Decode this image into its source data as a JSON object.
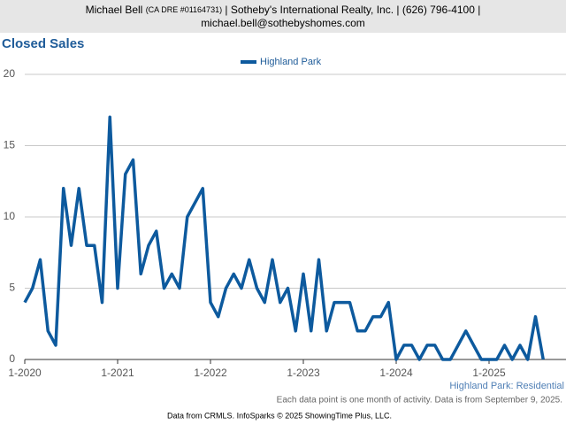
{
  "header": {
    "name": "Michael Bell",
    "license": "(CA DRE #01164731)",
    "company": "| Sotheby's International Realty, Inc. | (626) 796-4100 |",
    "email": "michael.bell@sothebyshomes.com"
  },
  "chart_data": {
    "type": "line",
    "title": "Closed Sales",
    "categories": [
      "1-2020",
      null,
      null,
      null,
      null,
      null,
      null,
      null,
      null,
      null,
      null,
      null,
      "1-2021",
      null,
      null,
      null,
      null,
      null,
      null,
      null,
      null,
      null,
      null,
      null,
      "1-2022",
      null,
      null,
      null,
      null,
      null,
      null,
      null,
      null,
      null,
      null,
      null,
      "1-2023",
      null,
      null,
      null,
      null,
      null,
      null,
      null,
      null,
      null,
      null,
      null,
      "1-2024",
      null,
      null,
      null,
      null,
      null,
      null,
      null,
      null,
      null,
      null,
      null,
      "1-2025",
      null,
      null,
      null,
      null,
      null,
      null,
      null
    ],
    "series": [
      {
        "name": "Highland Park",
        "color": "#0d5a9e",
        "values": [
          4,
          5,
          7,
          2,
          1,
          12,
          8,
          12,
          8,
          8,
          4,
          17,
          5,
          13,
          14,
          6,
          8,
          9,
          5,
          6,
          5,
          10,
          11,
          12,
          4,
          3,
          5,
          6,
          5,
          7,
          5,
          4,
          7,
          4,
          5,
          2,
          6,
          2,
          7,
          2,
          4,
          4,
          4,
          2,
          2,
          3,
          3,
          4,
          0,
          1,
          1,
          0,
          1,
          1,
          0,
          0,
          1,
          2,
          1,
          0,
          0,
          0,
          1,
          0,
          1,
          0,
          3,
          0
        ]
      }
    ],
    "ylim": [
      0,
      20
    ],
    "yticks": [
      0,
      5,
      10,
      15,
      20
    ],
    "grid": true,
    "annotation": "Highland Park: Residential",
    "note": "Each data point is one month of activity. Data is from September 9, 2025."
  },
  "footer": "Data from CRMLS. InfoSparks © 2025 ShowingTime Plus, LLC."
}
